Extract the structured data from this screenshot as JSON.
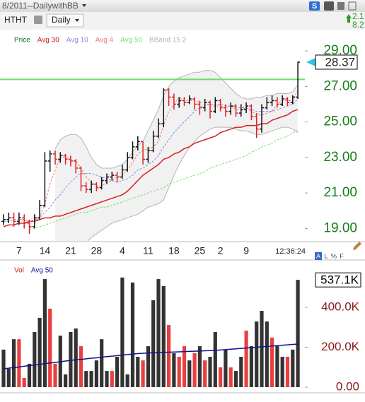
{
  "header": {
    "title": "8/2011--DailywithBB",
    "symbol": "HTHT",
    "interval": "Daily",
    "right_values": [
      "2.1",
      "8.2"
    ]
  },
  "panel_buttons": [
    "A",
    "L",
    "%",
    "F"
  ],
  "chart_data": [
    {
      "type": "ohlc",
      "categories": [
        null,
        null,
        null,
        "7",
        null,
        null,
        null,
        null,
        "14",
        null,
        null,
        null,
        null,
        "21",
        null,
        null,
        null,
        null,
        "28",
        null,
        null,
        null,
        null,
        "4",
        null,
        null,
        null,
        null,
        "11",
        null,
        null,
        null,
        null,
        "18",
        null,
        null,
        null,
        null,
        "25",
        null,
        null,
        null,
        "2",
        null,
        null,
        null,
        null,
        "9",
        null,
        null,
        null,
        null,
        null,
        null,
        null,
        null,
        null,
        null
      ],
      "series": [
        {
          "name": "Price",
          "color": "#137013",
          "up_color": "#111111",
          "down_color": "#dd2222",
          "open": [
            19.4,
            19.5,
            19.6,
            19.4,
            19.6,
            19.3,
            19.1,
            19.6,
            20.3,
            22.8,
            23.2,
            22.9,
            23.1,
            22.9,
            22.8,
            22.4,
            21.4,
            21.2,
            21.5,
            21.3,
            21.7,
            21.9,
            22.0,
            21.9,
            22.3,
            23.0,
            23.6,
            23.9,
            22.9,
            23.4,
            24.2,
            24.9,
            26.8,
            26.4,
            26.0,
            26.2,
            26.1,
            26.3,
            26.0,
            25.8,
            26.1,
            25.6,
            26.2,
            25.8,
            25.6,
            25.9,
            25.5,
            25.7,
            25.9,
            25.3,
            24.6,
            25.8,
            26.1,
            26.2,
            26.0,
            26.3,
            26.1,
            26.4
          ],
          "high": [
            19.8,
            19.9,
            19.9,
            19.9,
            19.8,
            19.5,
            19.8,
            20.6,
            23.3,
            23.4,
            23.4,
            23.3,
            23.2,
            23.1,
            22.9,
            22.5,
            21.6,
            21.7,
            21.6,
            21.9,
            22.1,
            22.2,
            22.2,
            22.6,
            23.3,
            23.9,
            24.2,
            23.9,
            23.6,
            24.5,
            25.2,
            26.9,
            26.9,
            26.6,
            26.4,
            26.4,
            26.5,
            26.4,
            26.2,
            26.3,
            26.2,
            26.4,
            26.3,
            26.0,
            26.1,
            26.0,
            26.0,
            26.1,
            26.0,
            25.5,
            26.0,
            26.4,
            26.5,
            26.4,
            26.5,
            26.4,
            26.5,
            28.4
          ],
          "low": [
            19.2,
            19.3,
            19.1,
            19.2,
            19.0,
            18.7,
            19.0,
            19.5,
            20.2,
            22.2,
            22.6,
            22.7,
            22.6,
            22.5,
            22.1,
            21.1,
            21.0,
            21.0,
            21.1,
            21.2,
            21.5,
            21.7,
            21.6,
            21.8,
            22.2,
            22.9,
            23.4,
            22.6,
            22.7,
            23.3,
            24.1,
            24.7,
            25.9,
            25.7,
            25.8,
            25.9,
            26.0,
            25.7,
            25.4,
            25.6,
            25.2,
            25.5,
            25.6,
            25.3,
            25.4,
            25.3,
            25.3,
            25.5,
            25.1,
            24.1,
            24.4,
            25.7,
            25.9,
            25.8,
            25.9,
            25.9,
            26.0,
            26.3
          ],
          "close": [
            19.5,
            19.6,
            19.4,
            19.6,
            19.3,
            19.1,
            19.6,
            20.3,
            22.8,
            23.2,
            22.9,
            23.1,
            22.9,
            22.8,
            22.4,
            21.4,
            21.2,
            21.5,
            21.3,
            21.7,
            21.9,
            22.0,
            21.9,
            22.3,
            23.0,
            23.6,
            23.9,
            22.9,
            23.4,
            24.2,
            24.9,
            26.8,
            26.4,
            26.0,
            26.2,
            26.1,
            26.3,
            26.0,
            25.8,
            26.1,
            25.6,
            26.2,
            25.8,
            25.6,
            25.9,
            25.5,
            25.7,
            25.9,
            25.3,
            24.6,
            25.8,
            26.1,
            26.2,
            26.0,
            26.3,
            26.1,
            26.4,
            28.37
          ]
        },
        {
          "name": "Avg 30",
          "color": "#d42020",
          "dashed": false,
          "values": [
            19.1,
            19.2,
            19.2,
            19.3,
            19.3,
            19.4,
            19.4,
            19.5,
            19.6,
            19.6,
            19.7,
            19.7,
            19.8,
            19.9,
            20.0,
            20.1,
            20.2,
            20.3,
            20.4,
            20.5,
            20.6,
            20.7,
            20.8,
            20.9,
            21.1,
            21.4,
            21.7,
            22.0,
            22.2,
            22.4,
            22.6,
            22.9,
            23.0,
            23.2,
            23.3,
            23.5,
            23.6,
            23.8,
            23.9,
            24.0,
            24.1,
            24.2,
            24.4,
            24.5,
            24.6,
            24.7,
            24.7,
            24.8,
            24.8,
            24.8,
            24.9,
            24.9,
            25.1,
            25.2,
            25.3,
            25.4,
            25.6,
            25.7
          ]
        },
        {
          "name": "Avg 10",
          "color": "#8a8ae6",
          "dashed": true,
          "values": [
            19.4,
            19.4,
            19.5,
            19.5,
            19.5,
            19.4,
            19.5,
            19.6,
            19.9,
            20.2,
            20.6,
            20.9,
            21.3,
            21.6,
            21.9,
            22.1,
            22.1,
            22.1,
            22.0,
            21.9,
            21.8,
            21.7,
            21.6,
            21.7,
            21.8,
            22.0,
            22.3,
            22.4,
            22.6,
            22.8,
            23.1,
            23.6,
            24.0,
            24.4,
            24.7,
            25.0,
            25.3,
            25.6,
            25.8,
            26.0,
            26.0,
            26.0,
            26.0,
            25.9,
            25.9,
            25.8,
            25.8,
            25.8,
            25.7,
            25.6,
            25.6,
            25.6,
            25.6,
            25.7,
            25.8,
            25.9,
            26.0,
            26.3
          ]
        },
        {
          "name": "Avg 4",
          "color": "#f07878",
          "dashed": true,
          "values": [
            null,
            null,
            null,
            19.5,
            19.5,
            19.4,
            19.4,
            19.6,
            20.4,
            21.5,
            22.3,
            23.0,
            23.0,
            22.9,
            22.8,
            22.4,
            21.9,
            21.6,
            21.4,
            21.4,
            21.6,
            21.7,
            21.9,
            22.0,
            22.3,
            22.7,
            23.2,
            23.4,
            23.5,
            23.6,
            23.9,
            24.8,
            25.6,
            26.0,
            26.4,
            26.2,
            26.2,
            26.2,
            26.1,
            26.1,
            25.9,
            25.9,
            25.9,
            25.8,
            25.9,
            25.7,
            25.7,
            25.8,
            25.6,
            25.4,
            25.4,
            25.5,
            25.6,
            26.0,
            26.2,
            26.2,
            26.2,
            26.8
          ]
        },
        {
          "name": "Avg 50",
          "color": "#77dd77",
          "dashed": true,
          "values": [
            null,
            null,
            null,
            null,
            null,
            18.9,
            19.0,
            19.1,
            19.2,
            19.3,
            19.4,
            19.5,
            19.6,
            19.7,
            19.8,
            19.9,
            19.9,
            20.0,
            20.1,
            20.2,
            20.2,
            20.3,
            20.4,
            20.5,
            20.6,
            20.7,
            20.8,
            20.9,
            21.0,
            21.1,
            21.2,
            21.3,
            21.5,
            21.6,
            21.7,
            21.8,
            21.9,
            22.0,
            22.1,
            22.2,
            22.4,
            22.5,
            22.6,
            22.7,
            22.8,
            22.9,
            23.0,
            23.1,
            23.3,
            23.4,
            23.6,
            23.7,
            23.8,
            24.0,
            24.1,
            24.2,
            24.4,
            24.5
          ]
        },
        {
          "name": "BBand 15 2",
          "color": "#b4b4b4",
          "fill": "#f1f1f1",
          "upper": [
            null,
            null,
            null,
            null,
            null,
            null,
            null,
            null,
            null,
            null,
            23.5,
            24.0,
            24.2,
            24.3,
            24.3,
            24.1,
            23.6,
            23.0,
            22.6,
            22.4,
            22.4,
            22.4,
            22.5,
            22.6,
            22.9,
            23.3,
            23.7,
            23.9,
            24.5,
            25.1,
            25.7,
            26.5,
            27.0,
            27.3,
            27.5,
            27.6,
            27.7,
            27.8,
            27.8,
            27.9,
            27.9,
            27.8,
            27.5,
            27.2,
            26.9,
            26.6,
            26.4,
            26.3,
            26.3,
            26.4,
            26.4,
            26.5,
            26.5,
            26.6,
            26.6,
            26.6,
            26.7,
            27.1
          ],
          "lower": [
            null,
            null,
            null,
            null,
            null,
            null,
            null,
            null,
            null,
            null,
            17.8,
            17.6,
            17.5,
            17.5,
            17.6,
            17.8,
            18.2,
            18.5,
            18.7,
            18.9,
            19.1,
            19.3,
            19.4,
            19.5,
            19.6,
            19.7,
            19.8,
            20.0,
            20.2,
            20.3,
            20.4,
            20.6,
            21.3,
            22.0,
            22.6,
            23.1,
            23.6,
            23.9,
            24.2,
            24.4,
            24.6,
            24.7,
            24.7,
            24.7,
            24.7,
            24.6,
            24.5,
            24.5,
            24.4,
            24.3,
            24.3,
            24.4,
            24.5,
            24.6,
            24.7,
            24.7,
            24.6,
            24.4
          ]
        }
      ],
      "ylim": [
        18.3,
        30.0
      ],
      "yticks": [
        {
          "value": 19,
          "label": "19.00"
        },
        {
          "value": 21,
          "label": "21.00"
        },
        {
          "value": 23,
          "label": "23.00"
        },
        {
          "value": 25,
          "label": "25.00"
        },
        {
          "value": 27,
          "label": "27.00"
        },
        {
          "value": 29,
          "label": "29.00"
        }
      ],
      "hline": 27.4,
      "hline_color": "#66e066",
      "last_price": 28.37,
      "time_label": "12:36:24"
    },
    {
      "type": "bar",
      "series": [
        {
          "name": "Vol",
          "color": "#cc2222",
          "values": [
            188000,
            92000,
            240000,
            240000,
            46000,
            117000,
            276000,
            347000,
            541000,
            393000,
            117000,
            258000,
            64000,
            276000,
            294000,
            205000,
            81000,
            81000,
            134000,
            240000,
            81000,
            81000,
            152000,
            549000,
            64000,
            524000,
            152000,
            134000,
            205000,
            435000,
            541000,
            506000,
            311000,
            170000,
            152000,
            205000,
            134000,
            170000,
            205000,
            134000,
            152000,
            276000,
            99000,
            188000,
            99000,
            81000,
            152000,
            283000,
            205000,
            329000,
            382000,
            329000,
            248000,
            205000,
            152000,
            152000,
            188000,
            537100
          ],
          "colors": [
            "#333333",
            "#333333",
            "#333333",
            "#e8403f",
            "#e8403f",
            "#333333",
            "#333333",
            "#333333",
            "#333333",
            "#e8403f",
            "#e8403f",
            "#333333",
            "#333333",
            "#333333",
            "#333333",
            "#e8403f",
            "#333333",
            "#333333",
            "#333333",
            "#333333",
            "#333333",
            "#e8403f",
            "#333333",
            "#333333",
            "#333333",
            "#333333",
            "#333333",
            "#e8403f",
            "#333333",
            "#333333",
            "#333333",
            "#333333",
            "#e8403f",
            "#333333",
            "#e8403f",
            "#e8403f",
            "#333333",
            "#e8403f",
            "#333333",
            "#e8403f",
            "#333333",
            "#333333",
            "#e8403f",
            "#333333",
            "#e8403f",
            "#333333",
            "#333333",
            "#e8403f",
            "#333333",
            "#333333",
            "#333333",
            "#333333",
            "#e8403f",
            "#333333",
            "#333333",
            "#e8403f",
            "#333333",
            "#333333"
          ]
        },
        {
          "name": "Avg 50",
          "color": "#101090",
          "values": [
            92000,
            95000,
            98000,
            101000,
            105000,
            108000,
            111000,
            114000,
            118000,
            121000,
            124000,
            127000,
            131000,
            134000,
            137000,
            139000,
            142000,
            145000,
            147000,
            150000,
            153000,
            155000,
            158000,
            161000,
            163000,
            166000,
            168000,
            170000,
            171000,
            172000,
            173000,
            174000,
            175000,
            176000,
            177000,
            178000,
            179000,
            180000,
            181000,
            182000,
            183000,
            184000,
            186000,
            188000,
            190000,
            192000,
            194000,
            196000,
            198000,
            200000,
            202000,
            204000,
            206000,
            208000,
            210000,
            212000,
            214000,
            216000
          ]
        }
      ],
      "ylim": [
        0,
        612000
      ],
      "yticks": [
        {
          "value": 0,
          "label": "0.00"
        },
        {
          "value": 200000,
          "label": "200.0K"
        },
        {
          "value": 400000,
          "label": "400.0K"
        }
      ],
      "last_label": {
        "value": 537100,
        "label": "537.1K"
      }
    }
  ]
}
